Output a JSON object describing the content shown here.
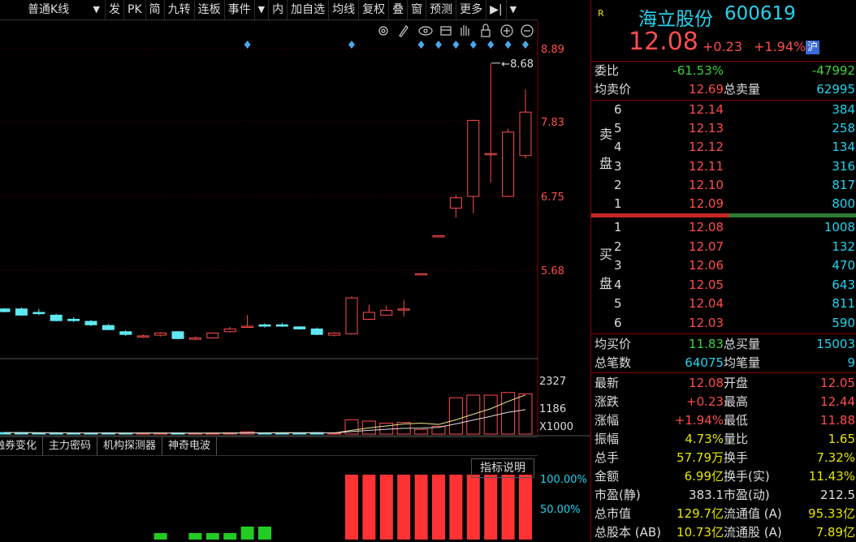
{
  "toolbar": {
    "chart_type": "普通K线",
    "items": [
      "发",
      "PK",
      "简",
      "九转",
      "连板",
      "事件",
      "内",
      "加自选",
      "均线",
      "复权",
      "叠",
      "窗",
      "预测",
      "更多"
    ]
  },
  "stock": {
    "r_mark": "R",
    "name": "海立股份",
    "code": "600619",
    "price": "12.08",
    "change": "+0.23",
    "pct": "+1.94%",
    "market": "沪"
  },
  "orderbook": {
    "wei_bi_label": "委比",
    "wei_bi": "-61.53%",
    "wei_cha": "-47992",
    "avg_sell_label": "均卖价",
    "avg_sell": "12.69",
    "total_sell_label": "总卖量",
    "total_sell": "62995",
    "sell_label": "卖盘",
    "buy_label": "买盘",
    "sells": [
      {
        "lvl": "6",
        "price": "12.14",
        "vol": "384"
      },
      {
        "lvl": "5",
        "price": "12.13",
        "vol": "258"
      },
      {
        "lvl": "4",
        "price": "12.12",
        "vol": "134"
      },
      {
        "lvl": "3",
        "price": "12.11",
        "vol": "316"
      },
      {
        "lvl": "2",
        "price": "12.10",
        "vol": "817"
      },
      {
        "lvl": "1",
        "price": "12.09",
        "vol": "800"
      }
    ],
    "buys": [
      {
        "lvl": "1",
        "price": "12.08",
        "vol": "1008"
      },
      {
        "lvl": "2",
        "price": "12.07",
        "vol": "132"
      },
      {
        "lvl": "3",
        "price": "12.06",
        "vol": "470"
      },
      {
        "lvl": "4",
        "price": "12.05",
        "vol": "643"
      },
      {
        "lvl": "5",
        "price": "12.04",
        "vol": "811"
      },
      {
        "lvl": "6",
        "price": "12.03",
        "vol": "590"
      }
    ],
    "buy_ratio": 0.52,
    "avg_buy_label": "均买价",
    "avg_buy": "11.83",
    "total_buy_label": "总买量",
    "total_buy": "15003",
    "trades_label": "总笔数",
    "trades": "64075",
    "avg_trade_label": "均笔量",
    "avg_trade": "9"
  },
  "stats": [
    {
      "l": "最新",
      "v": "12.08",
      "vc": "red",
      "l2": "开盘",
      "v2": "12.05",
      "v2c": "red"
    },
    {
      "l": "涨跌",
      "v": "+0.23",
      "vc": "red",
      "l2": "最高",
      "v2": "12.44",
      "v2c": "red"
    },
    {
      "l": "涨幅",
      "v": "+1.94%",
      "vc": "red",
      "l2": "最低",
      "v2": "11.88",
      "v2c": "red"
    },
    {
      "l": "振幅",
      "v": "4.73%",
      "vc": "yellow",
      "l2": "量比",
      "v2": "1.65",
      "v2c": "yellow"
    },
    {
      "l": "总手",
      "v": "57.79万",
      "vc": "yellow",
      "l2": "换手",
      "v2": "7.32%",
      "v2c": "yellow"
    },
    {
      "l": "金额",
      "v": "6.99亿",
      "vc": "yellow",
      "l2": "换手(实)",
      "v2": "11.43%",
      "v2c": "yellow"
    },
    {
      "l": "市盈(静)",
      "v": "383.1",
      "vc": "white",
      "l2": "市盈(动)",
      "v2": "212.5",
      "v2c": "white"
    },
    {
      "l": "总市值",
      "v": "129.7亿",
      "vc": "yellow",
      "l2": "流通值 (A)",
      "v2": "95.33亿",
      "v2c": "yellow"
    },
    {
      "l": "总股本 (AB)",
      "v": "10.73亿",
      "vc": "yellow",
      "l2": "流通股 (A)",
      "v2": "7.89亿",
      "v2c": "yellow"
    }
  ],
  "tabs": [
    "融券变化",
    "主力密码",
    "机构探测器",
    "神奇电波"
  ],
  "explain": "指标说明",
  "colors": {
    "up": "#ff4c4c",
    "down": "#5ee8f0",
    "panel_border": "#8b0000",
    "ma": "#f0e68c"
  },
  "chart_data": {
    "type": "candlestick",
    "price_ticks": [
      "8.89",
      "7.83",
      "6.75",
      "5.68"
    ],
    "price_ylim": [
      4.4,
      9.3
    ],
    "max_label": "8.68",
    "candles": [
      {
        "o": 5.12,
        "c": 5.08,
        "h": 5.13,
        "l": 5.07
      },
      {
        "o": 5.12,
        "c": 5.03,
        "h": 5.14,
        "l": 5.02
      },
      {
        "o": 5.07,
        "c": 5.05,
        "h": 5.12,
        "l": 5.03
      },
      {
        "o": 5.03,
        "c": 4.95,
        "h": 5.05,
        "l": 4.94
      },
      {
        "o": 4.97,
        "c": 4.95,
        "h": 5.0,
        "l": 4.93
      },
      {
        "o": 4.94,
        "c": 4.89,
        "h": 4.96,
        "l": 4.87
      },
      {
        "o": 4.88,
        "c": 4.82,
        "h": 4.9,
        "l": 4.81
      },
      {
        "o": 4.79,
        "c": 4.75,
        "h": 4.81,
        "l": 4.73
      },
      {
        "o": 4.72,
        "c": 4.73,
        "h": 4.75,
        "l": 4.7
      },
      {
        "o": 4.74,
        "c": 4.77,
        "h": 4.78,
        "l": 4.72
      },
      {
        "o": 4.79,
        "c": 4.69,
        "h": 4.8,
        "l": 4.68
      },
      {
        "o": 4.68,
        "c": 4.7,
        "h": 4.72,
        "l": 4.67
      },
      {
        "o": 4.7,
        "c": 4.77,
        "h": 4.78,
        "l": 4.69
      },
      {
        "o": 4.79,
        "c": 4.83,
        "h": 4.86,
        "l": 4.78
      },
      {
        "o": 4.86,
        "c": 4.87,
        "h": 5.03,
        "l": 4.85
      },
      {
        "o": 4.89,
        "c": 4.87,
        "h": 4.91,
        "l": 4.85
      },
      {
        "o": 4.89,
        "c": 4.87,
        "h": 4.92,
        "l": 4.86
      },
      {
        "o": 4.86,
        "c": 4.83,
        "h": 4.87,
        "l": 4.82
      },
      {
        "o": 4.83,
        "c": 4.75,
        "h": 4.85,
        "l": 4.74
      },
      {
        "o": 4.74,
        "c": 4.77,
        "h": 4.78,
        "l": 4.72
      },
      {
        "o": 4.76,
        "c": 5.28,
        "h": 5.3,
        "l": 4.75
      },
      {
        "o": 4.97,
        "c": 5.07,
        "h": 5.18,
        "l": 4.96
      },
      {
        "o": 5.03,
        "c": 5.1,
        "h": 5.17,
        "l": 5.02
      },
      {
        "o": 5.12,
        "c": 5.12,
        "h": 5.25,
        "l": 5.01
      },
      {
        "o": 5.63,
        "c": 5.63,
        "h": 5.63,
        "l": 5.63
      },
      {
        "o": 6.18,
        "c": 6.18,
        "h": 6.18,
        "l": 6.18
      },
      {
        "o": 6.58,
        "c": 6.73,
        "h": 6.77,
        "l": 6.44
      },
      {
        "o": 6.75,
        "c": 7.85,
        "h": 7.86,
        "l": 6.5
      },
      {
        "o": 7.37,
        "c": 7.37,
        "h": 8.68,
        "l": 6.95
      },
      {
        "o": 6.75,
        "c": 7.68,
        "h": 7.73,
        "l": 6.74
      },
      {
        "o": 7.34,
        "c": 7.97,
        "h": 8.3,
        "l": 7.3
      }
    ],
    "vol_ticks": [
      "2327",
      "1186",
      "X1000"
    ],
    "volumes": [
      60,
      55,
      40,
      45,
      35,
      40,
      50,
      30,
      35,
      35,
      45,
      30,
      40,
      50,
      90,
      45,
      40,
      45,
      55,
      35,
      550,
      500,
      420,
      450,
      180,
      300,
      1400,
      1500,
      1500,
      1600,
      1550
    ],
    "vol_ylim": [
      0,
      2500
    ],
    "ind_ticks": [
      "100.00%",
      "50.00%"
    ],
    "indicator": [
      0,
      0,
      0,
      0,
      0,
      0,
      0,
      0,
      0,
      0,
      0,
      0,
      0,
      0,
      0,
      0,
      0,
      0,
      0,
      0,
      1,
      1,
      1,
      1,
      1,
      1,
      1,
      1,
      1,
      1,
      1
    ],
    "indicator_green": [
      0,
      0,
      0,
      0,
      0,
      0,
      0,
      0,
      0,
      0.1,
      0,
      0.1,
      0.1,
      0.1,
      0.2,
      0.2,
      0,
      0,
      0,
      0,
      0,
      0,
      0,
      0,
      0,
      0,
      0,
      0,
      0,
      0,
      0
    ],
    "signals": [
      14,
      20,
      24,
      25,
      26,
      27,
      28,
      29,
      30
    ]
  }
}
